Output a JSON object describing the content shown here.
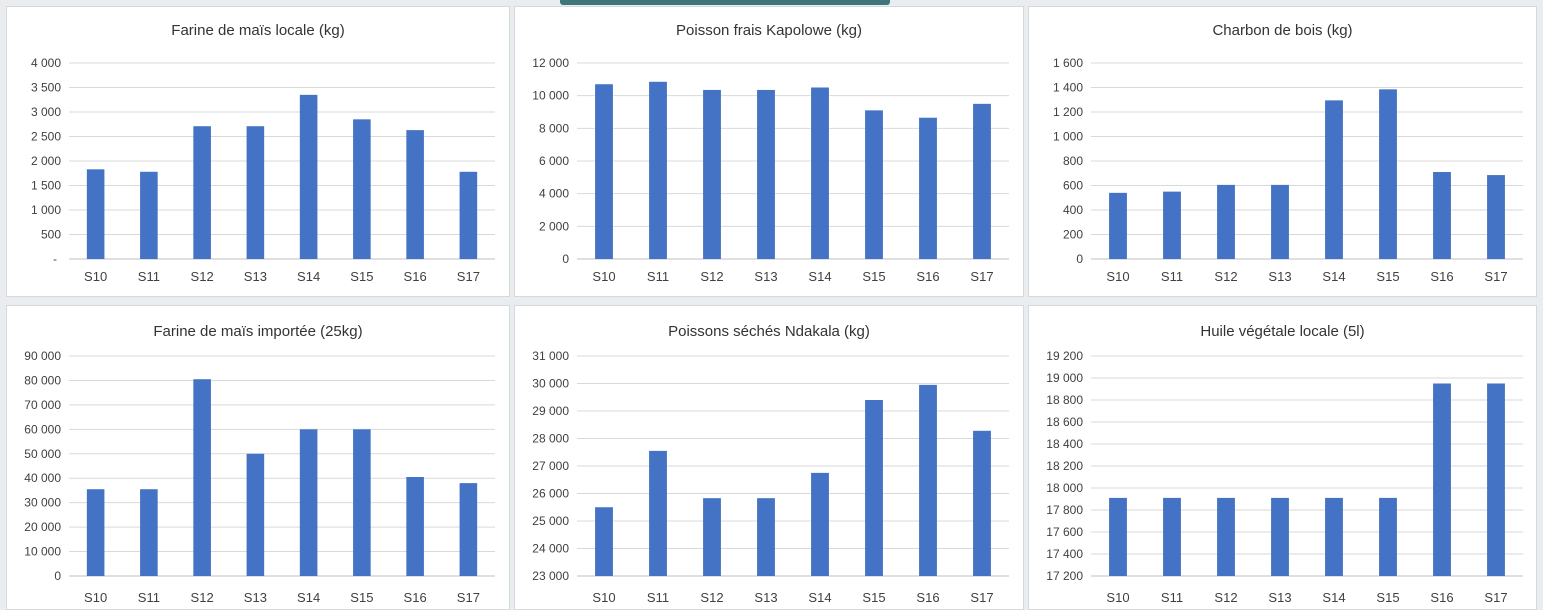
{
  "colors": {
    "bar": "#4472c4",
    "background": "#e9edf0",
    "panel": "#ffffff"
  },
  "chart_data": [
    {
      "type": "bar",
      "title": "Farine de maïs locale (kg)",
      "categories": [
        "S10",
        "S11",
        "S12",
        "S13",
        "S14",
        "S15",
        "S16",
        "S17"
      ],
      "values": [
        1830,
        1780,
        2710,
        2710,
        3350,
        2850,
        2630,
        1780
      ],
      "ylim": [
        0,
        4000
      ],
      "yticks": [
        0,
        500,
        1000,
        1500,
        2000,
        2500,
        3000,
        3500,
        4000
      ],
      "ytick_labels": [
        "-",
        "500",
        "1 000",
        "1 500",
        "2 000",
        "2 500",
        "3 000",
        "3 500",
        "4 000"
      ],
      "grid": true,
      "legend": "none"
    },
    {
      "type": "bar",
      "title": "Poisson frais Kapolowe (kg)",
      "categories": [
        "S10",
        "S11",
        "S12",
        "S13",
        "S14",
        "S15",
        "S16",
        "S17"
      ],
      "values": [
        10700,
        10850,
        10350,
        10350,
        10500,
        9100,
        8650,
        9500
      ],
      "ylim": [
        0,
        12000
      ],
      "yticks": [
        0,
        2000,
        4000,
        6000,
        8000,
        10000,
        12000
      ],
      "ytick_labels": [
        "0",
        "2 000",
        "4 000",
        "6 000",
        "8 000",
        "10 000",
        "12 000"
      ],
      "grid": true,
      "legend": "none"
    },
    {
      "type": "bar",
      "title": "Charbon de bois (kg)",
      "categories": [
        "S10",
        "S11",
        "S12",
        "S13",
        "S14",
        "S15",
        "S16",
        "S17"
      ],
      "values": [
        540,
        550,
        605,
        605,
        1295,
        1385,
        710,
        685
      ],
      "ylim": [
        0,
        1600
      ],
      "yticks": [
        0,
        200,
        400,
        600,
        800,
        1000,
        1200,
        1400,
        1600
      ],
      "ytick_labels": [
        "0",
        "200",
        "400",
        "600",
        "800",
        "1 000",
        "1 200",
        "1 400",
        "1 600"
      ],
      "grid": true,
      "legend": "none"
    },
    {
      "type": "bar",
      "title": "Farine de maïs importée (25kg)",
      "categories": [
        "S10",
        "S11",
        "S12",
        "S13",
        "S14",
        "S15",
        "S16",
        "S17"
      ],
      "values": [
        35500,
        35500,
        80500,
        50000,
        60000,
        60000,
        40500,
        38000
      ],
      "ylim": [
        0,
        90000
      ],
      "yticks": [
        0,
        10000,
        20000,
        30000,
        40000,
        50000,
        60000,
        70000,
        80000,
        90000
      ],
      "ytick_labels": [
        "0",
        "10 000",
        "20 000",
        "30 000",
        "40 000",
        "50 000",
        "60 000",
        "70 000",
        "80 000",
        "90 000"
      ],
      "grid": true,
      "legend": "none"
    },
    {
      "type": "bar",
      "title": "Poissons séchés Ndakala (kg)",
      "categories": [
        "S10",
        "S11",
        "S12",
        "S13",
        "S14",
        "S15",
        "S16",
        "S17"
      ],
      "values": [
        25500,
        27550,
        25830,
        25830,
        26750,
        29400,
        29950,
        28280
      ],
      "ylim": [
        23000,
        31000
      ],
      "yticks": [
        23000,
        24000,
        25000,
        26000,
        27000,
        28000,
        29000,
        30000,
        31000
      ],
      "ytick_labels": [
        "23 000",
        "24 000",
        "25 000",
        "26 000",
        "27 000",
        "28 000",
        "29 000",
        "30 000",
        "31 000"
      ],
      "grid": true,
      "legend": "none"
    },
    {
      "type": "bar",
      "title": "Huile végétale locale (5l)",
      "categories": [
        "S10",
        "S11",
        "S12",
        "S13",
        "S14",
        "S15",
        "S16",
        "S17"
      ],
      "values": [
        17910,
        17910,
        17910,
        17910,
        17910,
        17910,
        18950,
        18950
      ],
      "ylim": [
        17200,
        19200
      ],
      "yticks": [
        17200,
        17400,
        17600,
        17800,
        18000,
        18200,
        18400,
        18600,
        18800,
        19000,
        19200
      ],
      "ytick_labels": [
        "17 200",
        "17 400",
        "17 600",
        "17 800",
        "18 000",
        "18 200",
        "18 400",
        "18 600",
        "18 800",
        "19 000",
        "19 200"
      ],
      "grid": true,
      "legend": "none"
    }
  ]
}
